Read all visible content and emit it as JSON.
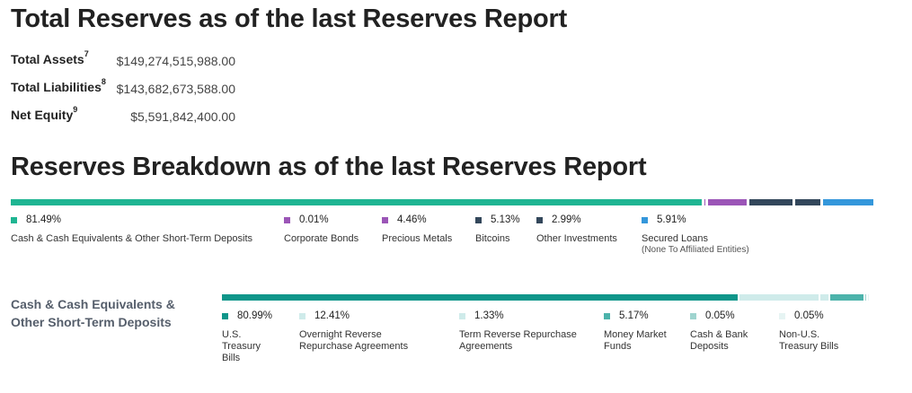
{
  "totals": {
    "title": "Total Reserves as of the last Reserves Report",
    "rows": [
      {
        "label": "Total Assets",
        "sup": "7",
        "value": "$149,274,515,988.00"
      },
      {
        "label": "Total Liabilities",
        "sup": "8",
        "value": "$143,682,673,588.00"
      },
      {
        "label": "Net Equity",
        "sup": "9",
        "value": "$5,591,842,400.00"
      }
    ]
  },
  "breakdown": {
    "title": "Reserves Breakdown as of the last Reserves Report",
    "items": [
      {
        "pct": "81.49%",
        "label": "Cash & Cash Equivalents & Other Short-Term Deposits",
        "sub": "",
        "value": 81.49,
        "color": "#1fb592"
      },
      {
        "pct": "0.01%",
        "label": "Corporate Bonds",
        "sub": "",
        "value": 0.01,
        "color": "#9b55b7"
      },
      {
        "pct": "4.46%",
        "label": "Precious Metals",
        "sub": "",
        "value": 4.46,
        "color": "#9b55b7"
      },
      {
        "pct": "5.13%",
        "label": "Bitcoins",
        "sub": "",
        "value": 5.13,
        "color": "#33475b"
      },
      {
        "pct": "2.99%",
        "label": "Other Investments",
        "sub": "",
        "value": 2.99,
        "color": "#33475b"
      },
      {
        "pct": "5.91%",
        "label": "Secured Loans",
        "sub": "(None To Affiliated Entities)",
        "value": 5.91,
        "color": "#3497db"
      }
    ]
  },
  "cash": {
    "title_line1": "Cash & Cash Equivalents &",
    "title_line2": "Other Short-Term Deposits",
    "items": [
      {
        "pct": "80.99%",
        "label_lines": [
          "U.S.",
          "Treasury",
          "Bills"
        ],
        "value": 80.99,
        "color": "#0f968a"
      },
      {
        "pct": "12.41%",
        "label_lines": [
          "Overnight Reverse",
          "Repurchase Agreements"
        ],
        "value": 12.41,
        "color": "#cfebea"
      },
      {
        "pct": "1.33%",
        "label_lines": [
          "Term Reverse Repurchase",
          "Agreements"
        ],
        "value": 1.33,
        "color": "#cfebea"
      },
      {
        "pct": "5.17%",
        "label_lines": [
          "Money Market",
          "Funds"
        ],
        "value": 5.17,
        "color": "#4cb3ab"
      },
      {
        "pct": "0.05%",
        "label_lines": [
          "Cash & Bank",
          "Deposits"
        ],
        "value": 0.05,
        "color": "#9fd4cf"
      },
      {
        "pct": "0.05%",
        "label_lines": [
          "Non-U.S.",
          "Treasury Bills"
        ],
        "value": 0.05,
        "color": "#e6f4f3"
      }
    ]
  }
}
